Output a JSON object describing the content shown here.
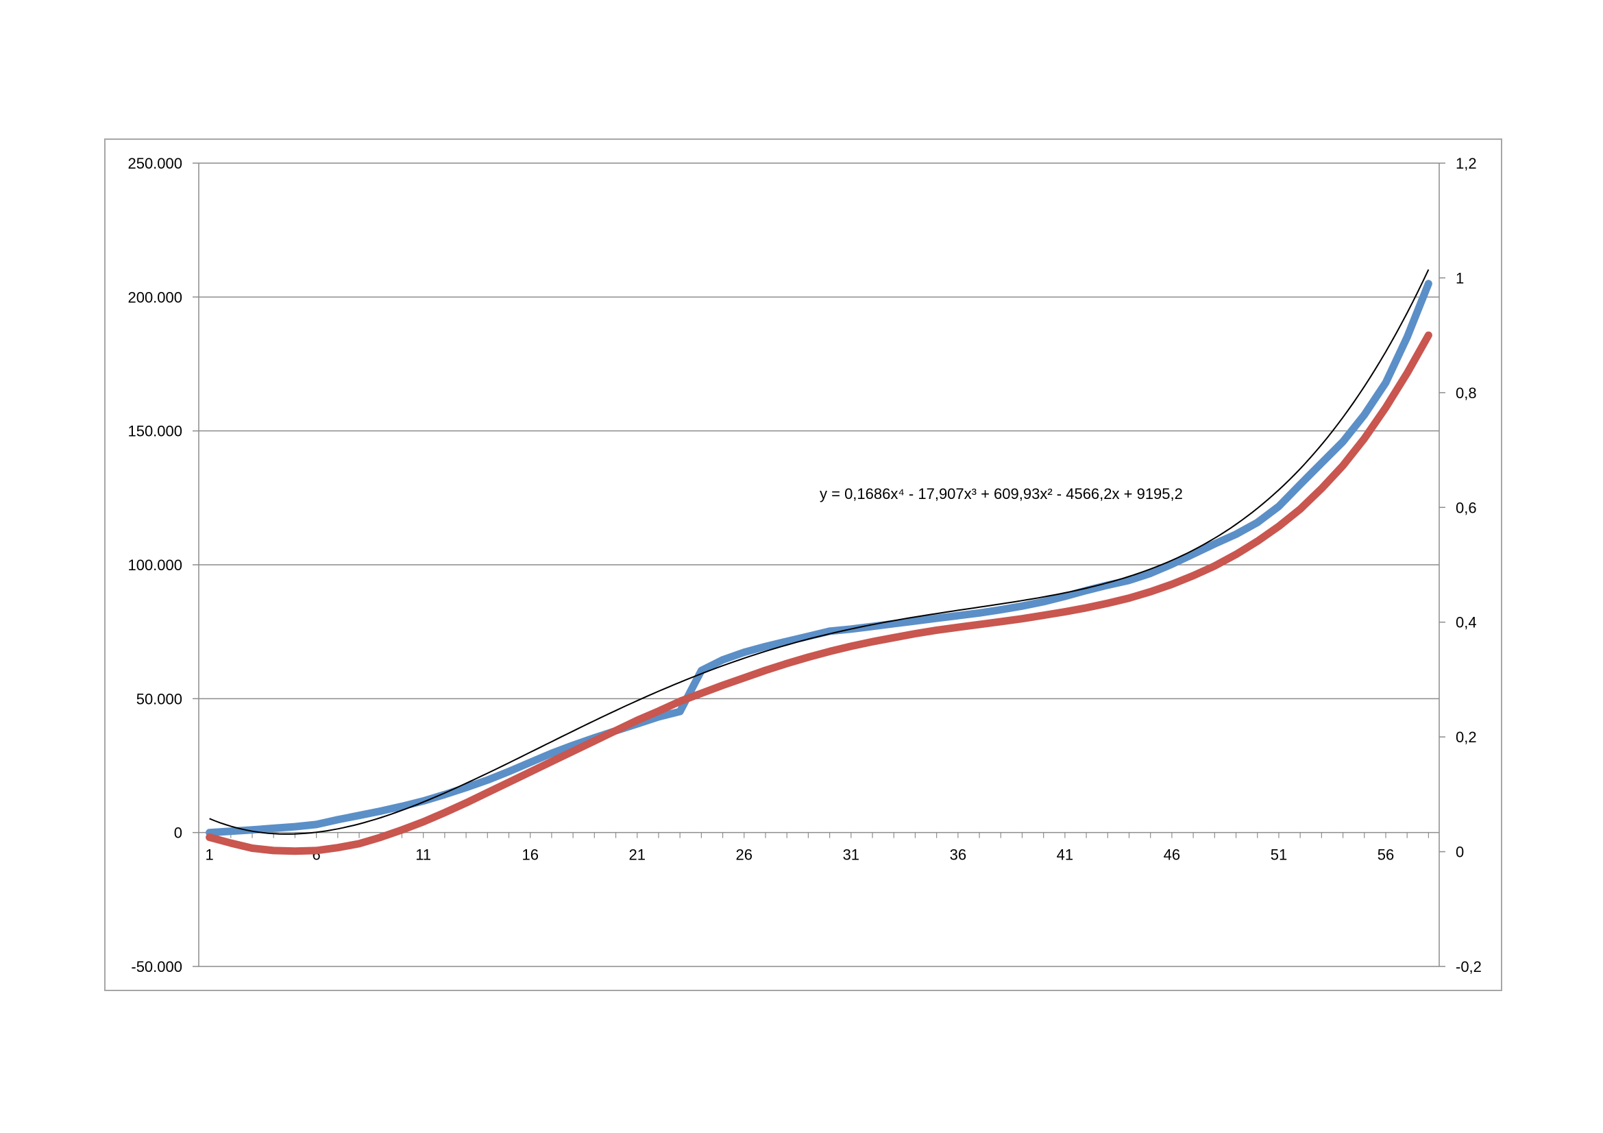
{
  "chart_data": {
    "type": "line",
    "title": "",
    "xlabel": "",
    "ylabel": "",
    "x": [
      1,
      2,
      3,
      4,
      5,
      6,
      7,
      8,
      9,
      10,
      11,
      12,
      13,
      14,
      15,
      16,
      17,
      18,
      19,
      20,
      21,
      22,
      23,
      24,
      25,
      26,
      27,
      28,
      29,
      30,
      31,
      32,
      33,
      34,
      35,
      36,
      37,
      38,
      39,
      40,
      41,
      42,
      43,
      44,
      45,
      46,
      47,
      48,
      49,
      50,
      51,
      52,
      53,
      54,
      55,
      56,
      57,
      58
    ],
    "x_tick_labels": [
      "1",
      "6",
      "11",
      "16",
      "21",
      "26",
      "31",
      "36",
      "41",
      "46",
      "51",
      "56"
    ],
    "x_tick_values": [
      1,
      6,
      11,
      16,
      21,
      26,
      31,
      36,
      41,
      46,
      51,
      56
    ],
    "xlim": [
      0.5,
      58.5
    ],
    "y_left": {
      "lim": [
        -50000,
        250000
      ],
      "ticks": [
        -50000,
        0,
        50000,
        100000,
        150000,
        200000,
        250000
      ],
      "tick_labels": [
        "-50.000",
        "0",
        "50.000",
        "100.000",
        "150.000",
        "200.000",
        "250.000"
      ]
    },
    "y_right": {
      "lim": [
        -0.2,
        1.2
      ],
      "ticks": [
        -0.2,
        0,
        0.2,
        0.4,
        0.6,
        0.8,
        1,
        1.2
      ],
      "tick_labels": [
        "-0,2",
        "0",
        "0,2",
        "0,4",
        "0,6",
        "0,8",
        "1",
        "1,2"
      ]
    },
    "grid": true,
    "series": [
      {
        "axis": "left",
        "color": "#5b8fc7",
        "values": [
          0,
          500,
          1000,
          1600,
          2200,
          3000,
          4800,
          6400,
          8000,
          9800,
          11800,
          14200,
          16800,
          19600,
          22800,
          26200,
          29600,
          32600,
          35400,
          38000,
          40600,
          43200,
          45200,
          60500,
          64500,
          67300,
          69500,
          71400,
          73300,
          75200,
          76000,
          77000,
          78000,
          79000,
          80000,
          81000,
          82000,
          83200,
          84600,
          86200,
          88200,
          90400,
          92400,
          94200,
          96800,
          100200,
          104000,
          107800,
          111400,
          115800,
          121800,
          130000,
          138000,
          146000,
          156000,
          168000,
          185000,
          205000
        ]
      },
      {
        "axis": "right",
        "color": "#c9564f",
        "values": [
          0.025,
          0.015,
          0.006,
          0.002,
          0.001,
          0.002,
          0.007,
          0.014,
          0.025,
          0.038,
          0.052,
          0.068,
          0.085,
          0.103,
          0.121,
          0.139,
          0.157,
          0.175,
          0.193,
          0.211,
          0.229,
          0.245,
          0.262,
          0.276,
          0.29,
          0.303,
          0.316,
          0.328,
          0.339,
          0.349,
          0.358,
          0.366,
          0.373,
          0.38,
          0.386,
          0.391,
          0.396,
          0.401,
          0.406,
          0.412,
          0.418,
          0.425,
          0.433,
          0.442,
          0.453,
          0.466,
          0.481,
          0.498,
          0.518,
          0.541,
          0.567,
          0.597,
          0.633,
          0.673,
          0.72,
          0.774,
          0.834,
          0.9
        ]
      },
      {
        "axis": "left",
        "color": "#000000",
        "trendline": true,
        "equation": "y = 0,1686x⁴ - 17,907x³ + 609,93x² - 4566,2x + 9195,2",
        "coefficients": [
          0.1686,
          -17.907,
          609.93,
          -4566.2,
          9195.2
        ]
      }
    ]
  }
}
